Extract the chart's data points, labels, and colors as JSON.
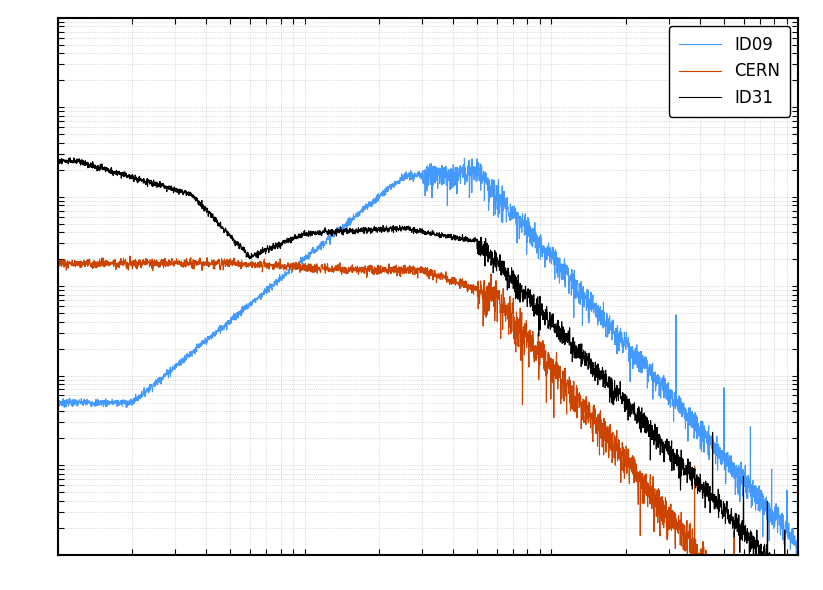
{
  "colors": {
    "ID09": "#4499ff",
    "CERN": "#cc4400",
    "ID31": "#000000"
  },
  "legend_labels": [
    "ID09",
    "CERN",
    "ID31"
  ],
  "background_color": "#ffffff",
  "grid_color": "#b0b0b0",
  "figsize": [
    8.23,
    5.9
  ],
  "dpi": 100,
  "xlim_log": [
    -1,
    2
  ],
  "ylim_log": [
    -10,
    -4
  ]
}
